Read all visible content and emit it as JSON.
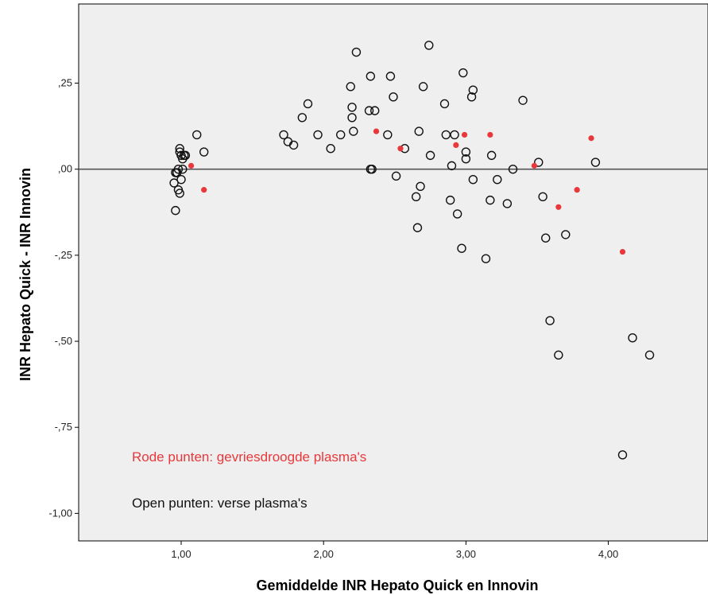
{
  "chart_data": {
    "type": "scatter",
    "xlabel": "Gemiddelde INR Hepato Quick en Innovin",
    "ylabel": "INR Hepato Quick - INR Innovin",
    "xlim": [
      0.28,
      4.7
    ],
    "ylim": [
      -1.08,
      0.48
    ],
    "x_ticks": [
      1.0,
      2.0,
      3.0,
      4.0
    ],
    "x_tick_labels": [
      "1,00",
      "2,00",
      "3,00",
      "4,00"
    ],
    "y_ticks": [
      0.25,
      0.0,
      -0.25,
      -0.5,
      -0.75,
      -1.0
    ],
    "y_tick_labels": [
      ",25",
      ",00",
      "-,25",
      "-,50",
      "-,75",
      "-1,00"
    ],
    "reference_line_y": 0,
    "grid": false,
    "background_color": "#efefef",
    "annotations": [
      {
        "text": "Rode punten: gevriesdroogde plasma's",
        "color": "#e8383b"
      },
      {
        "text": "Open punten: verse plasma's",
        "color": "#111111"
      }
    ],
    "series": [
      {
        "marker": "open-circle",
        "color": "#111111",
        "points": [
          [
            0.95,
            -0.04
          ],
          [
            0.96,
            -0.12
          ],
          [
            0.96,
            -0.01
          ],
          [
            0.97,
            -0.01
          ],
          [
            0.97,
            -0.01
          ],
          [
            0.98,
            -0.06
          ],
          [
            0.98,
            0.0
          ],
          [
            0.99,
            -0.07
          ],
          [
            0.99,
            0.05
          ],
          [
            0.99,
            0.06
          ],
          [
            1.0,
            0.04
          ],
          [
            1.0,
            -0.03
          ],
          [
            1.01,
            0.0
          ],
          [
            1.01,
            0.03
          ],
          [
            1.02,
            0.04
          ],
          [
            1.03,
            0.04
          ],
          [
            1.11,
            0.1
          ],
          [
            1.16,
            0.05
          ],
          [
            1.72,
            0.1
          ],
          [
            1.75,
            0.08
          ],
          [
            1.79,
            0.07
          ],
          [
            1.85,
            0.15
          ],
          [
            1.89,
            0.19
          ],
          [
            1.96,
            0.1
          ],
          [
            2.05,
            0.06
          ],
          [
            2.12,
            0.1
          ],
          [
            2.19,
            0.24
          ],
          [
            2.2,
            0.18
          ],
          [
            2.2,
            0.15
          ],
          [
            2.21,
            0.11
          ],
          [
            2.23,
            0.34
          ],
          [
            2.32,
            0.17
          ],
          [
            2.33,
            0.27
          ],
          [
            2.33,
            0.0
          ],
          [
            2.34,
            -0.0
          ],
          [
            2.36,
            0.17
          ],
          [
            2.45,
            0.1
          ],
          [
            2.47,
            0.27
          ],
          [
            2.49,
            0.21
          ],
          [
            2.51,
            -0.02
          ],
          [
            2.57,
            0.06
          ],
          [
            2.65,
            -0.08
          ],
          [
            2.66,
            -0.17
          ],
          [
            2.67,
            0.11
          ],
          [
            2.68,
            -0.05
          ],
          [
            2.7,
            0.24
          ],
          [
            2.74,
            0.36
          ],
          [
            2.75,
            0.04
          ],
          [
            2.85,
            0.19
          ],
          [
            2.86,
            0.1
          ],
          [
            2.89,
            -0.09
          ],
          [
            2.9,
            0.01
          ],
          [
            2.92,
            0.1
          ],
          [
            2.94,
            -0.13
          ],
          [
            2.97,
            -0.23
          ],
          [
            2.98,
            0.28
          ],
          [
            3.0,
            0.05
          ],
          [
            3.0,
            0.03
          ],
          [
            3.04,
            0.21
          ],
          [
            3.05,
            0.23
          ],
          [
            3.05,
            -0.03
          ],
          [
            3.14,
            -0.26
          ],
          [
            3.17,
            -0.09
          ],
          [
            3.18,
            0.04
          ],
          [
            3.22,
            -0.03
          ],
          [
            3.29,
            -0.1
          ],
          [
            3.33,
            0.0
          ],
          [
            3.4,
            0.2
          ],
          [
            3.51,
            0.02
          ],
          [
            3.54,
            -0.08
          ],
          [
            3.56,
            -0.2
          ],
          [
            3.59,
            -0.44
          ],
          [
            3.65,
            -0.54
          ],
          [
            3.7,
            -0.19
          ],
          [
            3.91,
            0.02
          ],
          [
            4.1,
            -0.83
          ],
          [
            4.17,
            -0.49
          ],
          [
            4.29,
            -0.54
          ]
        ]
      },
      {
        "marker": "filled-dot",
        "color": "#e8383b",
        "points": [
          [
            1.07,
            0.01
          ],
          [
            1.16,
            -0.06
          ],
          [
            2.37,
            0.11
          ],
          [
            2.54,
            0.06
          ],
          [
            2.93,
            0.07
          ],
          [
            2.99,
            0.1
          ],
          [
            3.17,
            0.1
          ],
          [
            3.48,
            0.01
          ],
          [
            3.65,
            -0.11
          ],
          [
            3.78,
            -0.06
          ],
          [
            3.88,
            0.09
          ],
          [
            4.1,
            -0.24
          ]
        ]
      }
    ]
  }
}
